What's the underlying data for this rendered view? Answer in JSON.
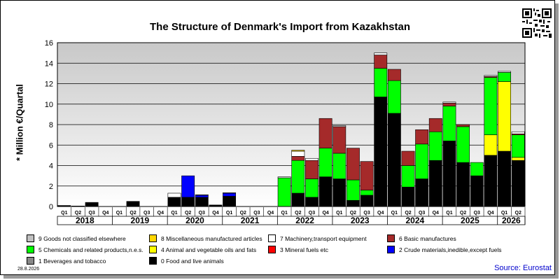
{
  "title": "The Structure of Denmark's Import from Kazakhstan",
  "ylabel": "* Million €/Quartal",
  "source": "Source: Eurostat",
  "date": "28.8.2026",
  "qr_icon": "qr-code-icon",
  "chart_data": {
    "type": "bar",
    "stacked": true,
    "ylim": [
      0,
      16
    ],
    "yticks": [
      0,
      2,
      4,
      6,
      8,
      10,
      12,
      14,
      16
    ],
    "grid": true,
    "categories": [
      "Q1",
      "Q2",
      "Q3",
      "Q4",
      "Q1",
      "Q2",
      "Q3",
      "Q4",
      "Q1",
      "Q2",
      "Q3",
      "Q4",
      "Q1",
      "Q2",
      "Q3",
      "Q4",
      "Q1",
      "Q2",
      "Q3",
      "Q4",
      "Q1",
      "Q2",
      "Q3",
      "Q4",
      "Q1",
      "Q2",
      "Q3",
      "Q4",
      "Q1",
      "Q2",
      "Q3",
      "Q4",
      "Q1",
      "Q2"
    ],
    "years": [
      {
        "label": "2018",
        "quarters": 4
      },
      {
        "label": "2019",
        "quarters": 4
      },
      {
        "label": "2020",
        "quarters": 4
      },
      {
        "label": "2021",
        "quarters": 4
      },
      {
        "label": "2022",
        "quarters": 4
      },
      {
        "label": "2023",
        "quarters": 4
      },
      {
        "label": "2024",
        "quarters": 4
      },
      {
        "label": "2025",
        "quarters": 4
      },
      {
        "label": "2026",
        "quarters": 2
      }
    ],
    "series": [
      {
        "name": "0 Food and live animals",
        "color": "#000000",
        "values": [
          0.1,
          0.05,
          0.4,
          0,
          0,
          0.5,
          0,
          0,
          0.9,
          0.9,
          0.9,
          0.15,
          1.0,
          0,
          0,
          0,
          0,
          1.3,
          0.9,
          2.9,
          2.7,
          0.6,
          1.1,
          10.7,
          9.1,
          1.9,
          2.7,
          4.5,
          6.4,
          4.3,
          3.0,
          5.0,
          5.4,
          4.5
        ]
      },
      {
        "name": "1 Beverages and tobacco",
        "color": "#888888",
        "values": [
          0,
          0,
          0,
          0,
          0,
          0,
          0,
          0,
          0,
          0,
          0,
          0,
          0,
          0,
          0,
          0,
          0,
          0,
          0,
          0,
          0,
          0,
          0,
          0,
          0,
          0,
          0,
          0,
          0,
          0,
          0,
          0,
          0,
          0
        ]
      },
      {
        "name": "2 Crude materials,inedible,except fuels",
        "color": "#0000ff",
        "values": [
          0,
          0,
          0,
          0,
          0,
          0,
          0,
          0,
          0,
          2.1,
          0.2,
          0,
          0.3,
          0,
          0,
          0,
          0,
          0,
          0,
          0,
          0,
          0,
          0,
          0,
          0,
          0,
          0,
          0,
          0,
          0,
          0,
          0,
          0,
          0
        ]
      },
      {
        "name": "3 Mineral fuels etc",
        "color": "#ff0000",
        "values": [
          0,
          0,
          0,
          0,
          0,
          0,
          0,
          0,
          0,
          0,
          0,
          0,
          0,
          0,
          0,
          0,
          0,
          0,
          0,
          0,
          0,
          0,
          0,
          0,
          0,
          0,
          0,
          0,
          0,
          0,
          0,
          0,
          0,
          0
        ]
      },
      {
        "name": "4 Animal and vegetable oils and fats",
        "color": "#ffff00",
        "values": [
          0,
          0,
          0,
          0,
          0,
          0,
          0,
          0,
          0,
          0,
          0,
          0,
          0,
          0,
          0,
          0,
          0,
          0,
          0,
          0,
          0,
          0,
          0,
          0,
          0,
          0,
          0,
          0,
          0,
          0,
          0,
          2.0,
          6.8,
          0.3
        ]
      },
      {
        "name": "5 Chemicals and related products,n.e.s.",
        "color": "#00ff00",
        "values": [
          0,
          0,
          0,
          0,
          0,
          0,
          0,
          0,
          0,
          0,
          0,
          0,
          0,
          0,
          0,
          0,
          2.8,
          3.2,
          1.8,
          2.8,
          2.5,
          2.0,
          0.5,
          2.8,
          3.2,
          2.1,
          3.4,
          2.8,
          3.4,
          3.5,
          1.3,
          5.6,
          0.9,
          2.2
        ]
      },
      {
        "name": "6 Basic manufactures",
        "color": "#a52a2a",
        "values": [
          0,
          0,
          0,
          0,
          0,
          0,
          0,
          0,
          0,
          0,
          0,
          0,
          0,
          0,
          0,
          0,
          0,
          0.4,
          1.8,
          2.9,
          2.6,
          3.1,
          2.8,
          1.3,
          1.1,
          1.4,
          1.4,
          1.3,
          0.3,
          0.2,
          0,
          0.1,
          0,
          0.1
        ]
      },
      {
        "name": "7 Machinery,transport equipment",
        "color": "#ffffff",
        "values": [
          0,
          0,
          0,
          0,
          0,
          0,
          0,
          0,
          0.4,
          0,
          0.05,
          0,
          0.05,
          0,
          0,
          0,
          0.1,
          0.5,
          0.2,
          0,
          0.1,
          0,
          0,
          0.2,
          0,
          0,
          0,
          0,
          0.1,
          0,
          0,
          0.1,
          0.1,
          0.2
        ]
      },
      {
        "name": "8 Miscellaneous manufactured articles",
        "color": "#ffd700",
        "values": [
          0,
          0,
          0,
          0,
          0,
          0,
          0,
          0,
          0,
          0,
          0,
          0,
          0,
          0,
          0,
          0,
          0,
          0.1,
          0,
          0,
          0,
          0,
          0,
          0,
          0,
          0,
          0,
          0,
          0,
          0,
          0,
          0,
          0,
          0
        ]
      },
      {
        "name": "9 Goods not classified elsewhere",
        "color": "#c0c0c0",
        "values": [
          0,
          0,
          0,
          0,
          0,
          0,
          0,
          0,
          0,
          0,
          0,
          0,
          0,
          0,
          0,
          0,
          0,
          0,
          0,
          0,
          0,
          0,
          0,
          0,
          0,
          0,
          0,
          0,
          0,
          0,
          0,
          0,
          0,
          0
        ]
      }
    ],
    "legend": {
      "placement": "bottom",
      "rows": [
        [
          "9 Goods not classified elsewhere",
          "8 Miscellaneous manufactured articles",
          "7 Machinery,transport equipment",
          "6 Basic manufactures"
        ],
        [
          "5 Chemicals and related products,n.e.s.",
          "4 Animal and vegetable oils and fats",
          "3 Mineral fuels etc",
          "2 Crude materials,inedible,except fuels"
        ],
        [
          "1 Beverages and tobacco",
          "0 Food and live animals"
        ]
      ]
    }
  }
}
